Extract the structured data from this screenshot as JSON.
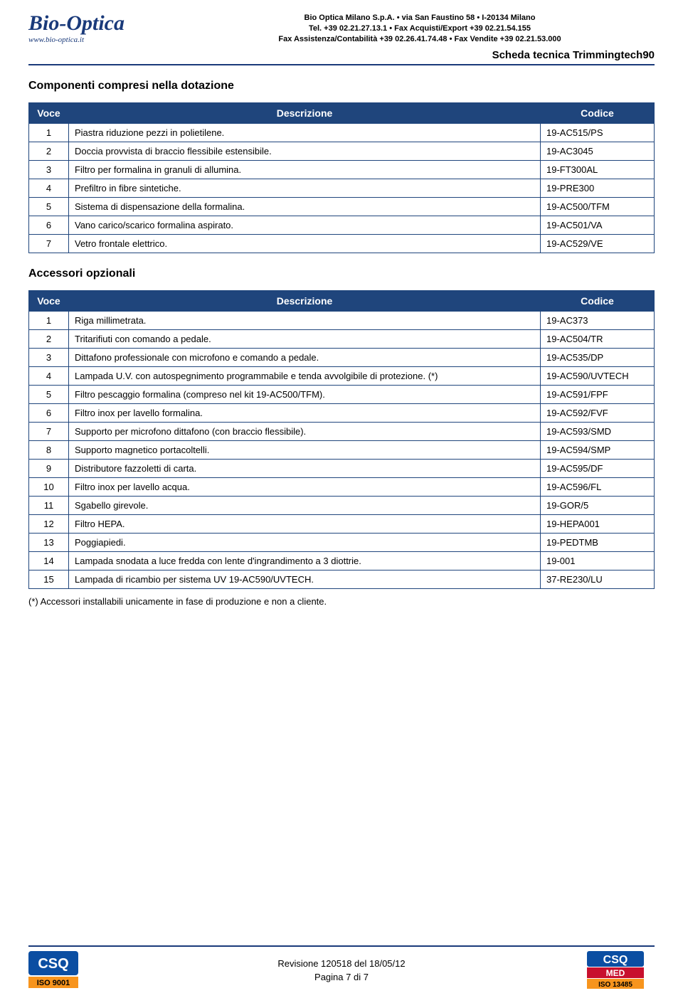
{
  "header": {
    "logo_main": "Bio-Optica",
    "logo_url": "www.bio-optica.it",
    "company_line1": "Bio Optica Milano S.p.A. • via San Faustino 58 • I-20134 Milano",
    "company_line2": "Tel. +39 02.21.27.13.1 • Fax Acquisti/Export +39 02.21.54.155",
    "company_line3": "Fax Assistenza/Contabilità +39 02.26.41.74.48 • Fax Vendite +39 02.21.53.000",
    "doc_title": "Scheda tecnica Trimmingtech90"
  },
  "section1": {
    "title": "Componenti compresi nella dotazione",
    "columns": {
      "voce": "Voce",
      "desc": "Descrizione",
      "code": "Codice"
    },
    "rows": [
      {
        "voce": "1",
        "desc": "Piastra riduzione pezzi in polietilene.",
        "code": "19-AC515/PS"
      },
      {
        "voce": "2",
        "desc": "Doccia provvista di braccio flessibile estensibile.",
        "code": "19-AC3045"
      },
      {
        "voce": "3",
        "desc": "Filtro per formalina in granuli di allumina.",
        "code": "19-FT300AL"
      },
      {
        "voce": "4",
        "desc": "Prefiltro in fibre sintetiche.",
        "code": "19-PRE300"
      },
      {
        "voce": "5",
        "desc": "Sistema di dispensazione della formalina.",
        "code": "19-AC500/TFM"
      },
      {
        "voce": "6",
        "desc": "Vano carico/scarico formalina aspirato.",
        "code": "19-AC501/VA"
      },
      {
        "voce": "7",
        "desc": "Vetro frontale elettrico.",
        "code": "19-AC529/VE"
      }
    ]
  },
  "section2": {
    "title": "Accessori opzionali",
    "columns": {
      "voce": "Voce",
      "desc": "Descrizione",
      "code": "Codice"
    },
    "rows": [
      {
        "voce": "1",
        "desc": "Riga millimetrata.",
        "code": "19-AC373"
      },
      {
        "voce": "2",
        "desc": "Tritarifiuti con comando a pedale.",
        "code": "19-AC504/TR"
      },
      {
        "voce": "3",
        "desc": "Dittafono professionale con microfono e comando a pedale.",
        "code": "19-AC535/DP"
      },
      {
        "voce": "4",
        "desc": "Lampada U.V. con autospegnimento programmabile e tenda avvolgibile di protezione. (*)",
        "code": "19-AC590/UVTECH"
      },
      {
        "voce": "5",
        "desc": "Filtro pescaggio formalina (compreso nel kit 19-AC500/TFM).",
        "code": "19-AC591/FPF"
      },
      {
        "voce": "6",
        "desc": "Filtro inox per lavello formalina.",
        "code": "19-AC592/FVF"
      },
      {
        "voce": "7",
        "desc": "Supporto per microfono dittafono (con braccio flessibile).",
        "code": "19-AC593/SMD"
      },
      {
        "voce": "8",
        "desc": "Supporto magnetico portacoltelli.",
        "code": "19-AC594/SMP"
      },
      {
        "voce": "9",
        "desc": "Distributore fazzoletti di carta.",
        "code": "19-AC595/DF"
      },
      {
        "voce": "10",
        "desc": "Filtro inox per lavello acqua.",
        "code": "19-AC596/FL"
      },
      {
        "voce": "11",
        "desc": "Sgabello girevole.",
        "code": "19-GOR/5"
      },
      {
        "voce": "12",
        "desc": "Filtro HEPA.",
        "code": "19-HEPA001"
      },
      {
        "voce": "13",
        "desc": "Poggiapiedi.",
        "code": "19-PEDTMB"
      },
      {
        "voce": "14",
        "desc": "Lampada snodata a luce fredda con lente d'ingrandimento a 3 diottrie.",
        "code": "19-001"
      },
      {
        "voce": "15",
        "desc": "Lampada di ricambio per sistema UV 19-AC590/UVTECH.",
        "code": "37-RE230/LU"
      }
    ],
    "footnote": "(*) Accessori installabili unicamente in fase di produzione e non a cliente."
  },
  "footer": {
    "revision": "Revisione 120518 del 18/05/12",
    "page": "Pagina 7 di 7",
    "left_badge_top": "CSQ",
    "left_badge_bottom": "ISO 9001",
    "right_badge_top": "CSQ",
    "right_badge_mid": "MED",
    "right_badge_bottom": "ISO 13485"
  },
  "colors": {
    "brand_blue": "#1a3a7a",
    "table_header": "#1f457c",
    "badge_blue": "#0b4ea2",
    "badge_red": "#c8102e",
    "badge_orange": "#f7941d"
  }
}
